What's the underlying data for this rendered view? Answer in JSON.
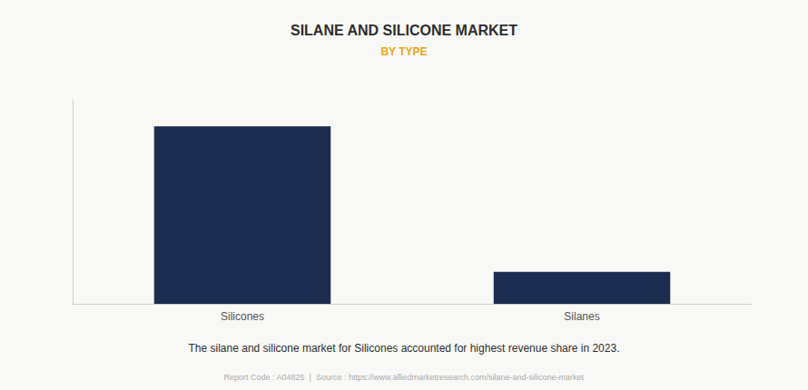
{
  "chart_data": {
    "type": "bar",
    "title": "SILANE AND SILICONE MARKET",
    "subtitle": "BY TYPE",
    "categories": [
      "Silicones",
      "Silanes"
    ],
    "values": [
      100,
      18
    ],
    "color": "#1c2d4f",
    "ylim": [
      0,
      115
    ],
    "grid": false,
    "tick_labels": "x",
    "annotations": [
      "The silane and silicone market for Silicones accounted for highest revenue share in 2023.",
      "Report Code : A04825  |  Source : https://www.alliedmarketresearch.com/silane-and-silicone-market"
    ]
  }
}
